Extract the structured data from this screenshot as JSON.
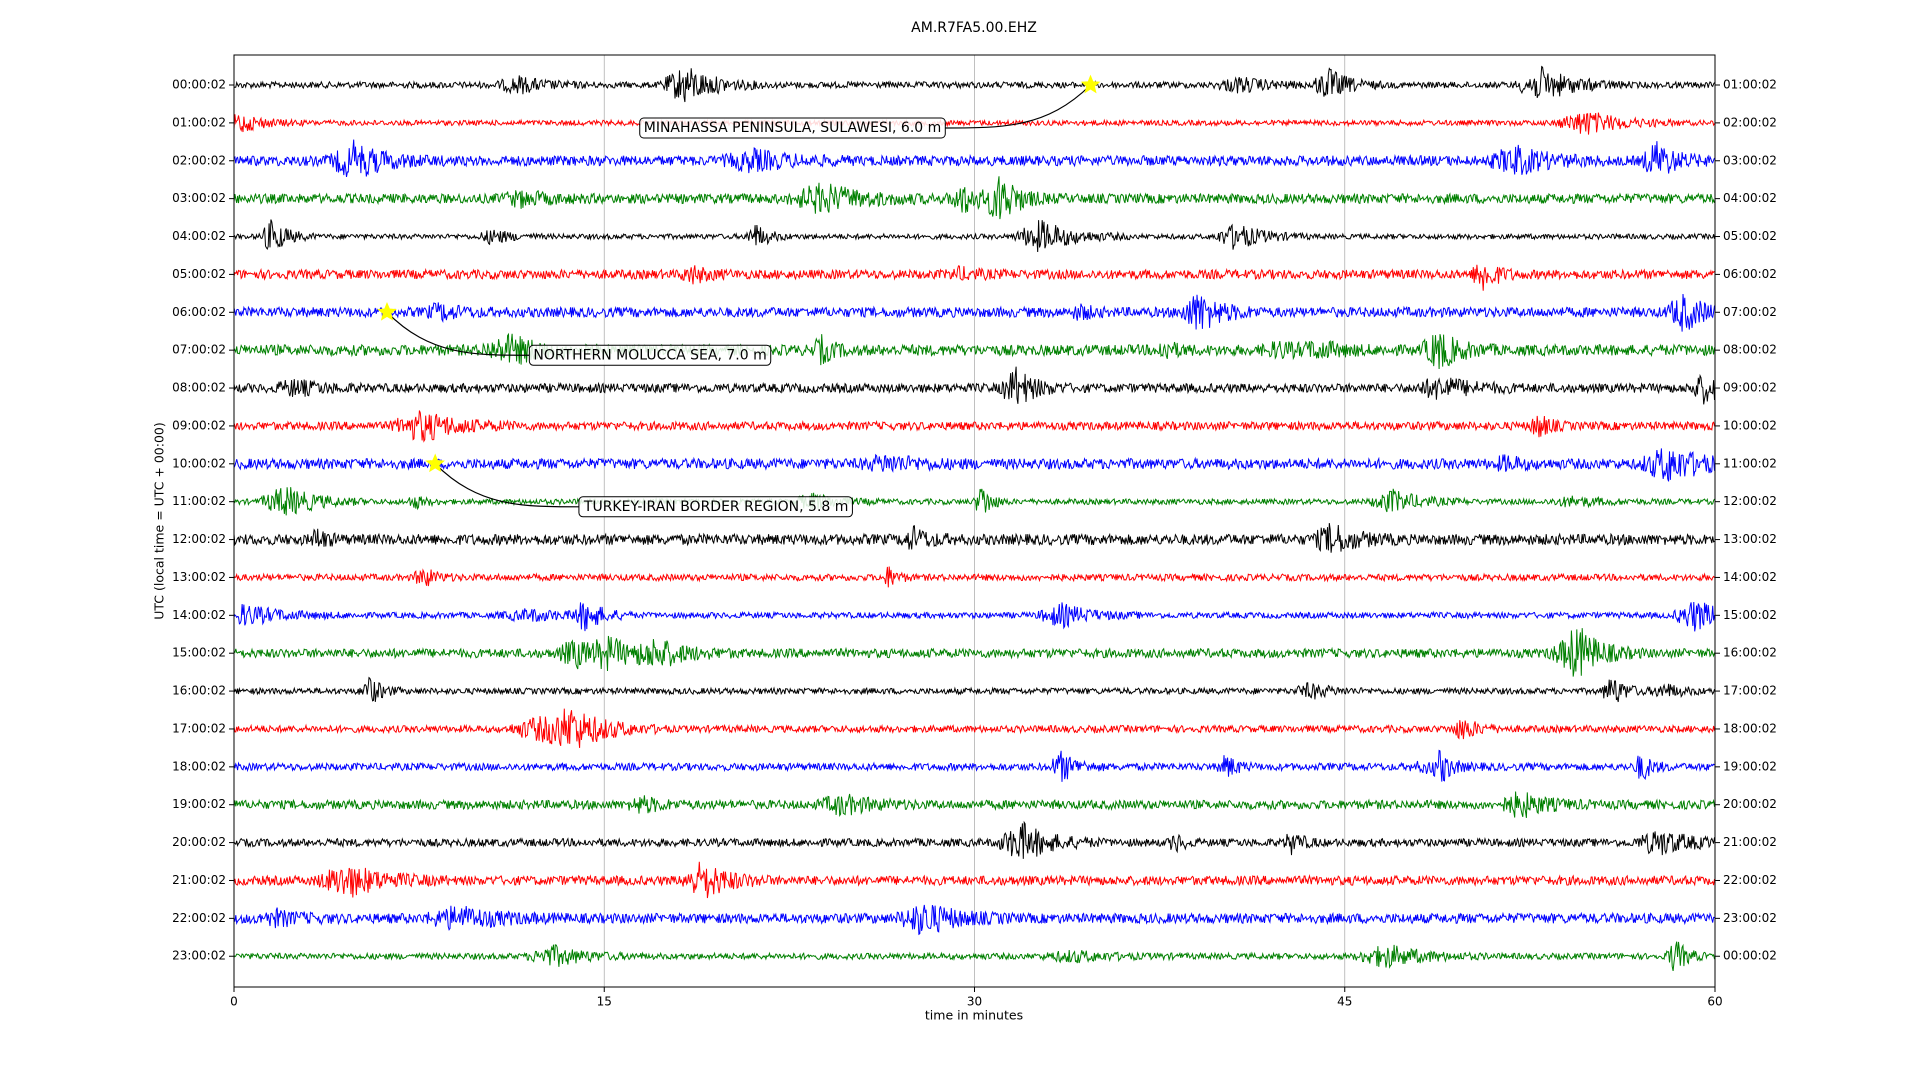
{
  "chart_data": {
    "type": "dayplot",
    "title": "AM.R7FA5.00.EHZ",
    "xlabel": "time in minutes",
    "ylabel": "UTC (local time = UTC + 00:00)",
    "xlim": [
      0,
      60
    ],
    "xticks": [
      0,
      15,
      30,
      45,
      60
    ],
    "grid": true,
    "categories": [
      "00:00:02",
      "01:00:02",
      "02:00:02",
      "03:00:02",
      "04:00:02",
      "05:00:02",
      "06:00:02",
      "07:00:02",
      "08:00:02",
      "09:00:02",
      "10:00:02",
      "11:00:02",
      "12:00:02",
      "13:00:02",
      "14:00:02",
      "15:00:02",
      "16:00:02",
      "17:00:02",
      "18:00:02",
      "19:00:02",
      "20:00:02",
      "21:00:02",
      "22:00:02",
      "23:00:02"
    ],
    "right_labels": [
      "01:00:02",
      "02:00:02",
      "03:00:02",
      "04:00:02",
      "05:00:02",
      "06:00:02",
      "07:00:02",
      "08:00:02",
      "09:00:02",
      "10:00:02",
      "11:00:02",
      "12:00:02",
      "13:00:02",
      "14:00:02",
      "15:00:02",
      "16:00:02",
      "17:00:02",
      "18:00:02",
      "19:00:02",
      "20:00:02",
      "21:00:02",
      "22:00:02",
      "23:00:02",
      "00:00:02"
    ],
    "colors": [
      "#000000",
      "#ff0000",
      "#0000ff",
      "#008000"
    ],
    "events": [
      {
        "label": "MINAHASSA PENINSULA, SULAWESI, 6.0 m",
        "x": 34.7,
        "row": "00:00:02"
      },
      {
        "label": "NORTHERN MOLUCCA SEA, 7.0 m",
        "x": 6.2,
        "row": "06:00:02"
      },
      {
        "label": "TURKEY-IRAN BORDER REGION, 5.8 m",
        "x": 8.15,
        "row": "10:00:02"
      }
    ]
  }
}
